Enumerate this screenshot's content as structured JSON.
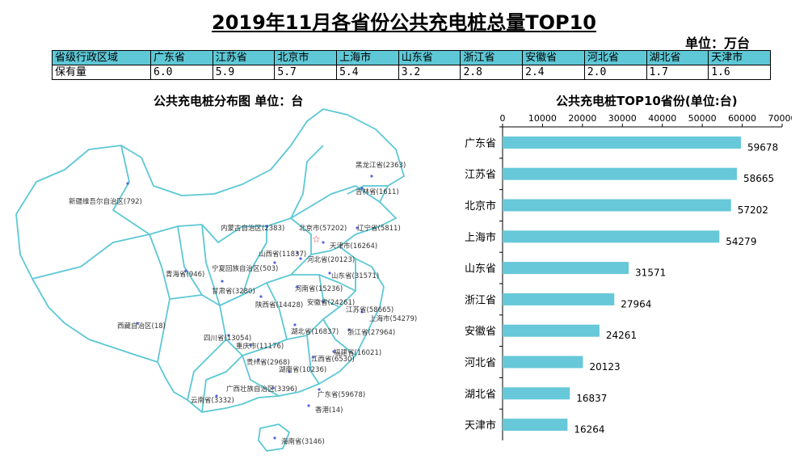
{
  "title": "2019年11月各省份公共充电桩总量TOP10",
  "unit_label": "单位：万台",
  "summary_table": {
    "row1_header": "省级行政区域",
    "row2_header": "保有量",
    "provinces": [
      "广东省",
      "江苏省",
      "北京市",
      "上海市",
      "山东省",
      "浙江省",
      "安徽省",
      "河北省",
      "湖北省",
      "天津市"
    ],
    "values": [
      "6.0",
      "5.9",
      "5.7",
      "5.4",
      "3.2",
      "2.8",
      "2.4",
      "2.0",
      "1.7",
      "1.6"
    ]
  },
  "map": {
    "title": "公共充电桩分布图  单位：台",
    "labels": [
      {
        "id": "heilongjiang",
        "text": "黑龙江省(2363)"
      },
      {
        "id": "jilin",
        "text": "吉林省(1611)"
      },
      {
        "id": "xinjiang",
        "text": "新疆维吾尔自治区(792)"
      },
      {
        "id": "neimenggu",
        "text": "内蒙古自治区(2383)"
      },
      {
        "id": "beijing",
        "text": "北京市(57202)"
      },
      {
        "id": "liaoning",
        "text": "辽宁省(5811)"
      },
      {
        "id": "tianjin",
        "text": "天津市(16264)"
      },
      {
        "id": "shanxi",
        "text": "山西省(11837)"
      },
      {
        "id": "hebei",
        "text": "河北省(20123)"
      },
      {
        "id": "ningxia",
        "text": "宁夏回族自治区(503)"
      },
      {
        "id": "qinghai",
        "text": "青海省(946)"
      },
      {
        "id": "shandong",
        "text": "山东省(31571)"
      },
      {
        "id": "gansu",
        "text": "甘肃省(3280)"
      },
      {
        "id": "henan",
        "text": "河南省(15236)"
      },
      {
        "id": "shaanxi",
        "text": "陕西省(14428)"
      },
      {
        "id": "anhui",
        "text": "安徽省(24261)"
      },
      {
        "id": "jiangsu",
        "text": "江苏省(58665)"
      },
      {
        "id": "shanghai",
        "text": "上海市(54279)"
      },
      {
        "id": "xizang",
        "text": "西藏自治区(18)"
      },
      {
        "id": "hubei",
        "text": "湖北省(16837)"
      },
      {
        "id": "zhejiang",
        "text": "浙江省(27964)"
      },
      {
        "id": "sichuan",
        "text": "四川省(13054)"
      },
      {
        "id": "chongqing",
        "text": "重庆市(11176)"
      },
      {
        "id": "fujian",
        "text": "福建省(16021)"
      },
      {
        "id": "jiangxi",
        "text": "江西省(6530)"
      },
      {
        "id": "guizhou",
        "text": "贵州省(2968)"
      },
      {
        "id": "hunan",
        "text": "湖南省(10236)"
      },
      {
        "id": "guangxi",
        "text": "广西壮族自治区(3396)"
      },
      {
        "id": "guangdong",
        "text": "广东省(59678)"
      },
      {
        "id": "yunnan",
        "text": "云南省(3332)"
      },
      {
        "id": "hongkong",
        "text": "香港(14)"
      },
      {
        "id": "hainan",
        "text": "海南省(3146)"
      }
    ]
  },
  "chart_data": {
    "type": "bar",
    "orientation": "horizontal",
    "title": "公共充电桩TOP10省份(单位:台)",
    "categories": [
      "广东省",
      "江苏省",
      "北京市",
      "上海市",
      "山东省",
      "浙江省",
      "安徽省",
      "河北省",
      "湖北省",
      "天津市"
    ],
    "values": [
      59678,
      58665,
      57202,
      54279,
      31571,
      27964,
      24261,
      20123,
      16837,
      16264
    ],
    "xlim": [
      0,
      70000
    ],
    "xticks": [
      0,
      10000,
      20000,
      30000,
      40000,
      50000,
      60000,
      70000
    ],
    "axis_position": "top",
    "bar_color": "#66c8d8",
    "grid": false
  }
}
